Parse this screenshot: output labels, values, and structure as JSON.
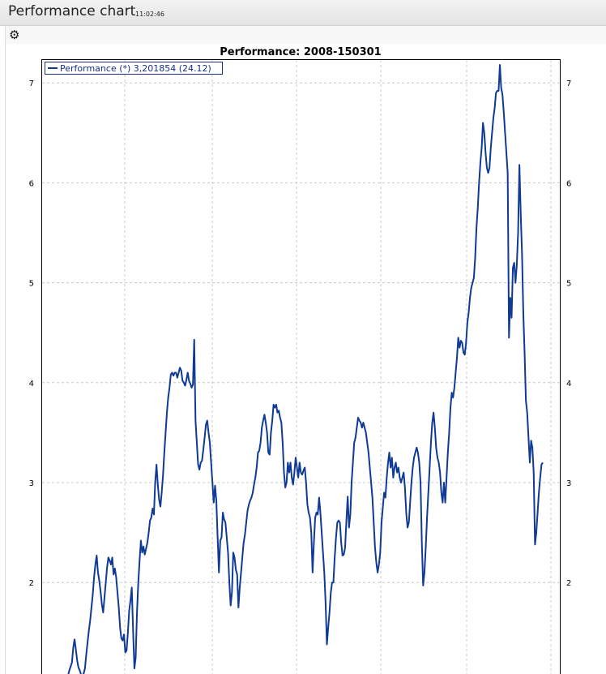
{
  "window": {
    "title": "Performance chart",
    "time": "11:02:46"
  },
  "toolbar": {
    "settings_icon": "gear-icon"
  },
  "colors": {
    "series": "#0f3a96",
    "grid": "#c8c8c8"
  },
  "chart_data": {
    "type": "line",
    "title": "Performance:   2008-150301",
    "xlabel": "",
    "ylabel": "",
    "ylim": [
      1.1,
      7.3
    ],
    "yticks": [
      2,
      3,
      4,
      5,
      6,
      7
    ],
    "grid": true,
    "legend_position": "top-left",
    "series": [
      {
        "name": "Performance (*) 3,201854 (24.12)",
        "values": [
          1.07,
          1.12,
          1.16,
          1.2,
          1.35,
          1.43,
          1.33,
          1.22,
          1.15,
          1.12,
          1.08,
          1.06,
          1.09,
          1.14,
          1.28,
          1.4,
          1.52,
          1.62,
          1.75,
          1.88,
          2.05,
          2.18,
          2.27,
          2.1,
          2.02,
          1.91,
          1.78,
          1.7,
          1.85,
          2.0,
          2.15,
          2.25,
          2.22,
          2.18,
          2.25,
          2.08,
          2.14,
          2.05,
          1.9,
          1.75,
          1.55,
          1.44,
          1.42,
          1.48,
          1.3,
          1.32,
          1.5,
          1.72,
          1.82,
          1.95,
          1.52,
          1.14,
          1.25,
          1.7,
          2.0,
          2.22,
          2.42,
          2.3,
          2.36,
          2.28,
          2.34,
          2.4,
          2.5,
          2.62,
          2.65,
          2.74,
          2.68,
          3.0,
          3.18,
          2.98,
          2.83,
          2.76,
          2.9,
          3.07,
          3.3,
          3.5,
          3.7,
          3.85,
          3.95,
          4.08,
          4.1,
          4.07,
          4.1,
          4.1,
          4.05,
          4.1,
          4.15,
          4.12,
          4.02,
          4.0,
          3.97,
          4.03,
          4.1,
          4.02,
          3.99,
          3.95,
          3.98,
          4.43,
          3.62,
          3.4,
          3.18,
          3.13,
          3.2,
          3.22,
          3.33,
          3.45,
          3.58,
          3.62,
          3.5,
          3.4,
          3.2,
          3.0,
          2.8,
          2.97,
          2.82,
          2.45,
          2.1,
          2.42,
          2.45,
          2.7,
          2.63,
          2.6,
          2.45,
          2.3,
          2.0,
          1.77,
          1.9,
          2.3,
          2.25,
          2.13,
          2.08,
          1.75,
          1.95,
          2.1,
          2.25,
          2.4,
          2.48,
          2.6,
          2.72,
          2.78,
          2.82,
          2.85,
          2.9,
          2.98,
          3.05,
          3.15,
          3.3,
          3.32,
          3.4,
          3.55,
          3.62,
          3.68,
          3.6,
          3.5,
          3.3,
          3.28,
          3.5,
          3.62,
          3.78,
          3.75,
          3.78,
          3.7,
          3.72,
          3.65,
          3.6,
          3.4,
          3.1,
          2.95,
          3.0,
          3.2,
          3.1,
          3.2,
          3.05,
          2.98,
          3.1,
          3.25,
          3.15,
          3.05,
          3.2,
          3.1,
          3.08,
          3.12,
          3.15,
          3.0,
          2.78,
          2.7,
          2.65,
          2.5,
          2.1,
          2.4,
          2.65,
          2.7,
          2.68,
          2.85,
          2.7,
          2.5,
          2.3,
          2.1,
          1.8,
          1.38,
          1.55,
          1.7,
          1.9,
          2.0,
          2.0,
          2.25,
          2.45,
          2.6,
          2.62,
          2.6,
          2.4,
          2.27,
          2.28,
          2.35,
          2.62,
          2.86,
          2.55,
          2.68,
          3.0,
          3.2,
          3.4,
          3.45,
          3.55,
          3.65,
          3.62,
          3.6,
          3.55,
          3.6,
          3.55,
          3.5,
          3.4,
          3.3,
          3.15,
          3.0,
          2.85,
          2.6,
          2.35,
          2.2,
          2.1,
          2.18,
          2.3,
          2.6,
          2.75,
          2.9,
          2.85,
          3.05,
          3.2,
          3.3,
          3.15,
          3.25,
          3.05,
          3.15,
          3.2,
          3.1,
          3.15,
          3.05,
          3.0,
          3.05,
          3.1,
          2.95,
          2.7,
          2.55,
          2.6,
          2.8,
          3.0,
          3.15,
          3.25,
          3.3,
          3.35,
          3.3,
          3.2,
          3.0,
          2.4,
          1.97,
          2.1,
          2.35,
          2.65,
          2.9,
          3.15,
          3.4,
          3.6,
          3.7,
          3.55,
          3.35,
          3.25,
          3.2,
          3.1,
          2.9,
          2.8,
          3.0,
          2.8,
          3.05,
          3.3,
          3.5,
          3.75,
          3.9,
          3.85,
          3.95,
          4.1,
          4.25,
          4.45,
          4.35,
          4.42,
          4.4,
          4.3,
          4.28,
          4.4,
          4.6,
          4.7,
          4.85,
          4.95,
          5.0,
          5.05,
          5.25,
          5.55,
          5.75,
          6.0,
          6.2,
          6.35,
          6.6,
          6.5,
          6.3,
          6.15,
          6.1,
          6.15,
          6.35,
          6.5,
          6.65,
          6.75,
          6.9,
          6.92,
          6.92,
          7.18,
          6.95,
          6.88,
          6.7,
          6.5,
          6.3,
          6.1,
          4.45,
          4.85,
          4.65,
          5.15,
          5.2,
          5.0,
          5.18,
          5.5,
          6.18,
          5.7,
          5.3,
          4.7,
          4.3,
          3.82,
          3.7,
          3.45,
          3.2,
          3.42,
          3.35,
          3.1,
          2.38,
          2.5,
          2.7,
          2.9,
          3.05,
          3.18,
          3.2
        ]
      }
    ]
  }
}
